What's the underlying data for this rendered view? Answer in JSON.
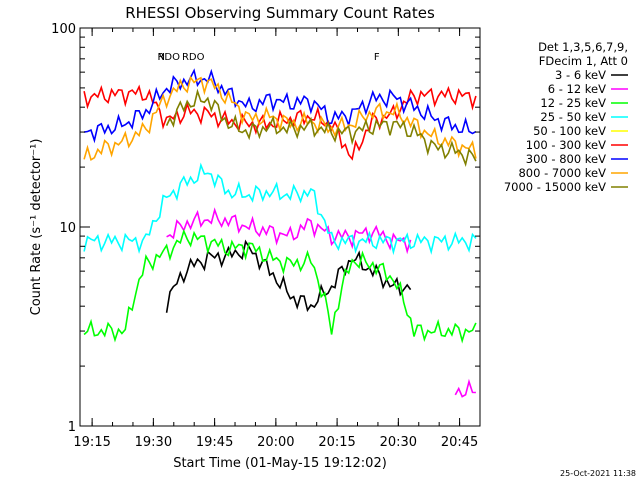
{
  "chart_data": {
    "type": "line",
    "title": "RHESSI Observing Summary Count Rates",
    "xlabel": "Start Time (01-May-15 19:12:02)",
    "ylabel": "Count Rate (s⁻¹ detector⁻¹)",
    "yscale": "log",
    "ylim": [
      1,
      100
    ],
    "xlim_minutes": [
      19.2,
      20.83
    ],
    "x_ticks": [
      "19:15",
      "19:30",
      "19:45",
      "20:00",
      "20:15",
      "20:30",
      "20:45"
    ],
    "x_tick_minutes": [
      1155,
      1170,
      1185,
      1200,
      1215,
      1230,
      1245
    ],
    "y_ticks": [
      "1",
      "10",
      "100"
    ],
    "y_tick_values": [
      1,
      10,
      100
    ],
    "legend_header": [
      "Det 1,3,5,6,7,9,",
      "FDecim 1, Att 0"
    ],
    "legend_position": "right",
    "annotations": [
      {
        "text": "RDO",
        "color": "#008000",
        "time": "19:31"
      },
      {
        "text": "RDO",
        "color": "#008000",
        "time": "19:37"
      },
      {
        "text": "N",
        "color": "#00ffff",
        "time": "19:31"
      },
      {
        "text": "F",
        "color": "#ff0000",
        "time": "20:24"
      }
    ],
    "footer_date": "25-Oct-2021 11:38",
    "series": [
      {
        "name": "3 - 6 keV",
        "color": "#000000",
        "values": [
          0,
          0,
          0,
          0,
          4.2,
          6.2,
          7.0,
          7.2,
          7.8,
          6.0,
          4.5,
          4.0,
          5.0,
          7.0,
          6.0,
          5.0,
          0,
          0,
          0,
          0
        ]
      },
      {
        "name": "6 - 12 keV",
        "color": "#ff00ff",
        "values": [
          0,
          0,
          0,
          0,
          9.0,
          10.5,
          11.0,
          10.8,
          10.0,
          9.5,
          9.0,
          10.5,
          9.0,
          9.0,
          9.5,
          8.5,
          0,
          0,
          1.5,
          1.5
        ]
      },
      {
        "name": "12 - 25 keV",
        "color": "#00ff00",
        "values": [
          3.0,
          3.0,
          3.0,
          6.5,
          7.5,
          9.0,
          8.5,
          7.8,
          8.0,
          7.0,
          6.5,
          6.8,
          3.0,
          6.8,
          6.5,
          5.5,
          3.0,
          3.0,
          3.0,
          3.0
        ]
      },
      {
        "name": "25 - 50 keV",
        "color": "#00ffff",
        "values": [
          8.5,
          8.5,
          8.5,
          8.5,
          14.0,
          17.0,
          19.0,
          15.0,
          14.5,
          15.0,
          14.5,
          15.0,
          8.5,
          8.5,
          8.5,
          8.5,
          8.5,
          8.5,
          8.5,
          8.5
        ]
      },
      {
        "name": "50 - 100 keV",
        "color": "#ffff00",
        "values": [
          0,
          0,
          0,
          0,
          0,
          0,
          0,
          0,
          0,
          0,
          0,
          0,
          0,
          0,
          0,
          0,
          0,
          0,
          0,
          0
        ]
      },
      {
        "name": "100 - 300 keV",
        "color": "#ff0000",
        "values": [
          45,
          46,
          47,
          47,
          34,
          38,
          37,
          34,
          33,
          33,
          35,
          36,
          33,
          22,
          34,
          37,
          46,
          46,
          46,
          45
        ]
      },
      {
        "name": "300 - 800 keV",
        "color": "#0000ff",
        "values": [
          30,
          31,
          33,
          38,
          50,
          55,
          56,
          47,
          40,
          44,
          42,
          43,
          35,
          37,
          44,
          45,
          40,
          35,
          32,
          30
        ]
      },
      {
        "name": "800 - 7000 keV",
        "color": "#ffa500",
        "values": [
          22,
          25,
          27,
          31,
          45,
          53,
          54,
          44,
          35,
          36,
          33,
          34,
          31,
          33,
          38,
          38,
          33,
          28,
          26,
          24
        ]
      },
      {
        "name": "7000 - 15000 keV",
        "color": "#808000",
        "values": [
          0,
          0,
          0,
          0,
          33,
          42,
          44,
          33,
          30,
          32,
          31,
          32,
          30,
          30,
          32,
          33,
          30,
          25,
          24,
          22
        ]
      }
    ]
  }
}
